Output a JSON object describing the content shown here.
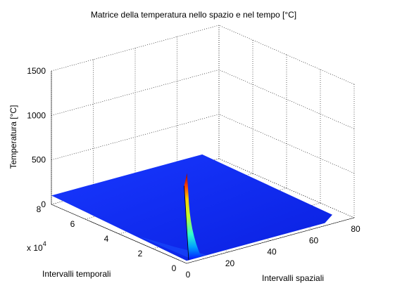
{
  "chart_data": {
    "type": "surface",
    "title": "Matrice della temperatura nello spazio e nel tempo [°C]",
    "xlabel": "Intervalli spaziali",
    "ylabel": "Intervalli temporali",
    "zlabel": "Temperatura [°C]",
    "xlim": [
      0,
      80
    ],
    "ylim": [
      0,
      8
    ],
    "y_multiplier": "x 10",
    "y_multiplier_exponent": "4",
    "zlim": [
      0,
      1500
    ],
    "xticks": [
      "0",
      "20",
      "40",
      "60",
      "80"
    ],
    "yticks": [
      "0",
      "2",
      "4",
      "6",
      "8"
    ],
    "zticks": [
      "0",
      "500",
      "1000",
      "1500"
    ],
    "grid": true,
    "colormap": "jet",
    "surface": {
      "x_range": [
        0,
        72
      ],
      "y_range": [
        0,
        8
      ],
      "peak": {
        "x": 1,
        "y": 0,
        "z": 1000
      },
      "baseline_temperature": 100,
      "description_values": {
        "near_boundary_x0": 100,
        "far_field": 100,
        "boundary_x72": 100
      }
    }
  }
}
